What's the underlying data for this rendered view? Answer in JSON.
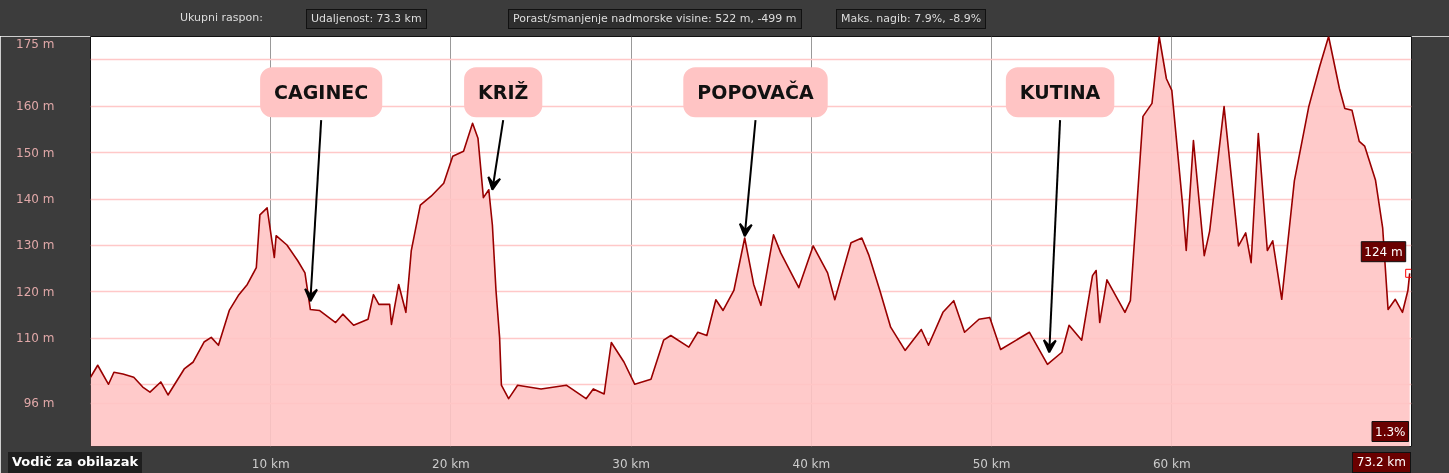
{
  "chart_data": {
    "type": "area",
    "x": [
      0,
      0.4,
      1.0,
      1.3,
      1.8,
      2.4,
      2.9,
      3.3,
      3.9,
      4.3,
      5.2,
      5.7,
      6.3,
      6.7,
      7.1,
      7.7,
      8.2,
      8.7,
      9.2,
      9.4,
      9.8,
      10.2,
      10.3,
      10.9,
      11.5,
      11.9,
      12.2,
      12.7,
      13.6,
      14.0,
      14.6,
      15.4,
      15.7,
      16.0,
      16.6,
      16.7,
      17.1,
      17.5,
      17.8,
      18.3,
      18.9,
      19.6,
      20.1,
      20.7,
      21.2,
      21.5,
      21.8,
      22.1,
      22.3,
      22.5,
      22.7,
      22.8,
      23.2,
      23.7,
      25.0,
      26.4,
      27.5,
      27.9,
      28.5,
      28.9,
      29.6,
      30.2,
      31.1,
      31.8,
      32.2,
      33.2,
      33.7,
      34.2,
      34.7,
      35.1,
      35.7,
      36.3,
      36.8,
      37.2,
      37.9,
      38.3,
      39.3,
      40.1,
      40.9,
      41.3,
      42.2,
      42.8,
      43.2,
      43.8,
      44.4,
      45.2,
      46.1,
      46.5,
      47.3,
      47.9,
      48.5,
      49.3,
      49.9,
      50.5,
      52.1,
      53.1,
      53.9,
      54.3,
      55.0,
      55.6,
      55.8,
      56.0,
      56.4,
      57.4,
      57.7,
      58.4,
      58.9,
      59.3,
      59.7,
      60.0,
      60.6,
      60.8,
      61.2,
      61.8,
      62.1,
      62.9,
      63.7,
      64.1,
      64.4,
      64.8,
      65.3,
      65.6,
      66.1,
      66.8,
      67.6,
      68.2,
      68.7,
      69.3,
      69.6,
      70.0,
      70.4,
      70.7,
      71.3,
      71.7,
      72.0,
      72.4,
      72.8,
      73.1,
      73.2
    ],
    "series": [
      {
        "color": "#990000",
        "values": [
          101.6,
          104.2,
          100.1,
          102.7,
          102.3,
          101.6,
          99.5,
          98.4,
          100.6,
          97.8,
          103.4,
          104.9,
          109.2,
          110.2,
          108.5,
          116.0,
          119.2,
          121.6,
          125.2,
          136.6,
          138.1,
          127.4,
          132.1,
          130.1,
          126.7,
          124.1,
          116.2,
          116.0,
          113.4,
          115.2,
          112.8,
          114.1,
          119.4,
          117.3,
          117.3,
          113.0,
          121.6,
          115.6,
          128.9,
          138.7,
          140.6,
          143.4,
          149.2,
          150.3,
          156.3,
          153.1,
          140.3,
          142.0,
          134.4,
          120.3,
          110.2,
          99.9,
          97.0,
          99.9,
          99.1,
          99.9,
          97.0,
          99.1,
          98.0,
          109.1,
          104.9,
          100.1,
          101.2,
          109.6,
          110.6,
          108.1,
          111.3,
          110.6,
          118.3,
          116.0,
          120.3,
          131.6,
          121.6,
          117.1,
          132.3,
          128.4,
          120.9,
          129.9,
          124.1,
          118.3,
          130.6,
          131.6,
          127.8,
          120.3,
          112.4,
          107.4,
          111.9,
          108.5,
          115.6,
          118.1,
          111.3,
          114.1,
          114.5,
          107.6,
          111.3,
          104.4,
          107.0,
          112.8,
          109.6,
          123.5,
          124.6,
          113.4,
          122.6,
          115.6,
          118.1,
          157.8,
          160.6,
          175,
          165.9,
          163.4,
          138.7,
          128.9,
          152.6,
          127.8,
          133.1,
          159.9,
          129.9,
          132.7,
          126.3,
          154.1,
          128.9,
          131.0,
          118.4,
          143.9,
          159.9,
          168.5,
          175,
          163.8,
          159.5,
          159.1,
          152.4,
          151.4,
          144.1,
          133.8,
          116.2,
          118.4,
          115.6,
          120.3,
          124
        ]
      }
    ],
    "xlim": [
      0,
      73.3
    ],
    "ylim": [
      86.7,
      175
    ],
    "xticks": [
      {
        "value": 10,
        "label": "10 km"
      },
      {
        "value": 20,
        "label": "20 km"
      },
      {
        "value": 30,
        "label": "30 km"
      },
      {
        "value": 40,
        "label": "40 km"
      },
      {
        "value": 50,
        "label": "50 km"
      },
      {
        "value": 60,
        "label": "60 km"
      }
    ],
    "yticks": [
      {
        "value": 96,
        "label": "96 m"
      },
      {
        "value": 100,
        "label": null
      },
      {
        "value": 110,
        "label": "110 m"
      },
      {
        "value": 120,
        "label": "120 m"
      },
      {
        "value": 130,
        "label": "130 m"
      },
      {
        "value": 140,
        "label": "140 m"
      },
      {
        "value": 150,
        "label": "150 m"
      },
      {
        "value": 160,
        "label": "160 m"
      },
      {
        "value": 170,
        "label": null
      },
      {
        "value": 175,
        "label": "175 m"
      }
    ],
    "grid": true,
    "annotations": [
      "Ukupni raspon:",
      "Udaljenost: 73.3 km",
      "Porast/smanjenje nadmorske visine: 522 m, -499 m",
      "Maks. nagib: 7.9%, -8.9%",
      "Vodič za obilazak",
      "1.3%",
      "73.2 km",
      {
        "text": "CAGINEC",
        "x": 12.2,
        "y": 117
      },
      {
        "text": "KRIŽ",
        "x": 22.3,
        "y": 141
      },
      {
        "text": "POPOVAČA",
        "x": 36.3,
        "y": 131
      },
      {
        "text": "KUTINA",
        "x": 53.2,
        "y": 106
      },
      {
        "text": "124 m",
        "x": 73.2,
        "y": 124
      }
    ]
  }
}
